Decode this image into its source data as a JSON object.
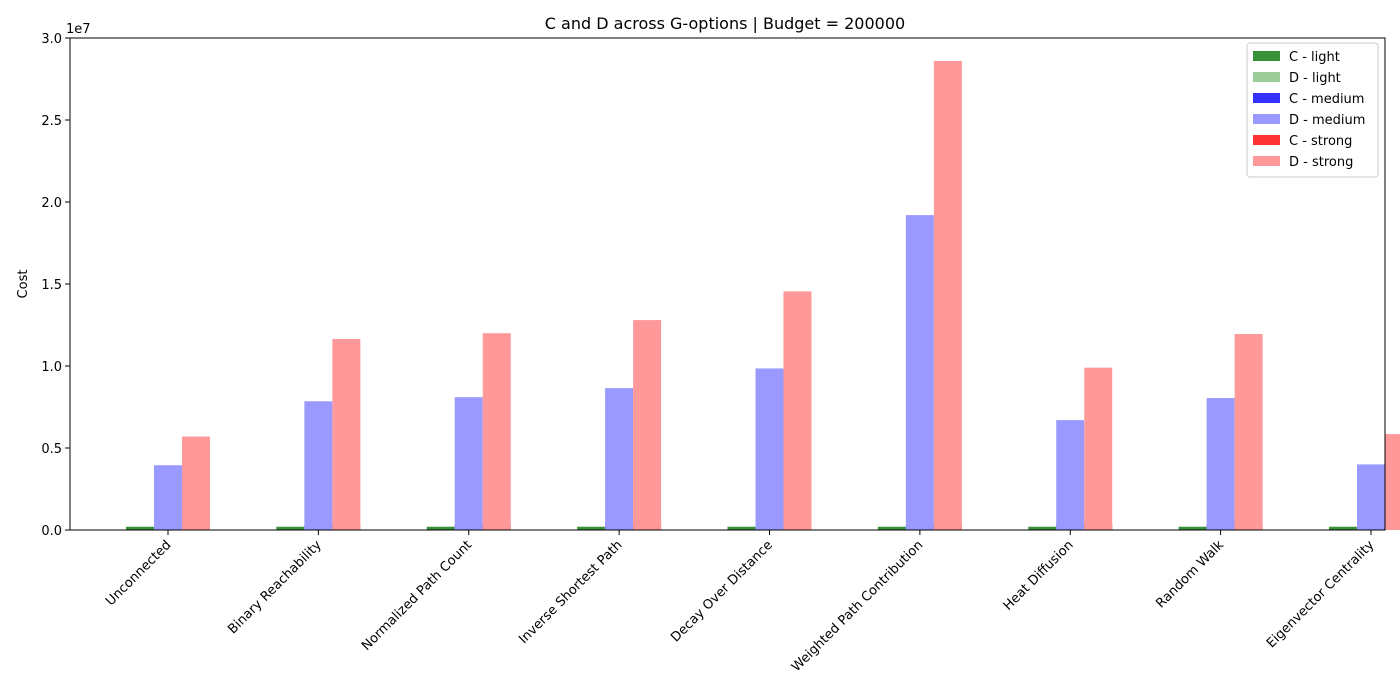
{
  "chart_data": {
    "type": "bar",
    "title": "C and D across G-options | Budget = 200000",
    "xlabel": "",
    "ylabel": "Cost",
    "y_multiplier_label": "1e7",
    "ylim": [
      0,
      30000000
    ],
    "yticks": [
      0,
      5000000,
      10000000,
      15000000,
      20000000,
      25000000,
      30000000
    ],
    "ytick_labels": [
      "0.0",
      "0.5",
      "1.0",
      "1.5",
      "2.0",
      "2.5",
      "3.0"
    ],
    "grid": false,
    "legend_position": "top-right",
    "categories": [
      "Unconnected",
      "Binary Reachability",
      "Normalized Path Count",
      "Inverse Shortest Path",
      "Decay Over Distance",
      "Weighted Path Contribution",
      "Heat Diffusion",
      "Random Walk",
      "Eigenvector Centrality"
    ],
    "series": [
      {
        "name": "C - light",
        "color": "#2e8b2e",
        "opacity": 0.95,
        "values": [
          200000,
          200000,
          200000,
          200000,
          200000,
          200000,
          200000,
          200000,
          200000
        ]
      },
      {
        "name": "D - light",
        "color": "#9ccc9a",
        "opacity": 1.0,
        "values": [
          0,
          0,
          0,
          0,
          0,
          0,
          0,
          0,
          0
        ]
      },
      {
        "name": "C - medium",
        "color": "#3333ff",
        "opacity": 1.0,
        "values": [
          350000,
          350000,
          350000,
          350000,
          350000,
          350000,
          350000,
          350000,
          350000
        ]
      },
      {
        "name": "D - medium",
        "color": "#9999ff",
        "opacity": 1.0,
        "values": [
          3950000,
          7850000,
          8100000,
          8650000,
          9850000,
          19200000,
          6700000,
          8050000,
          4000000
        ]
      },
      {
        "name": "C - strong",
        "color": "#ff3333",
        "opacity": 1.0,
        "values": [
          350000,
          350000,
          350000,
          350000,
          350000,
          350000,
          350000,
          350000,
          350000
        ]
      },
      {
        "name": "D - strong",
        "color": "#ff9999",
        "opacity": 1.0,
        "values": [
          5700000,
          11650000,
          12000000,
          12800000,
          14550000,
          28600000,
          9900000,
          11950000,
          5850000
        ]
      }
    ]
  }
}
